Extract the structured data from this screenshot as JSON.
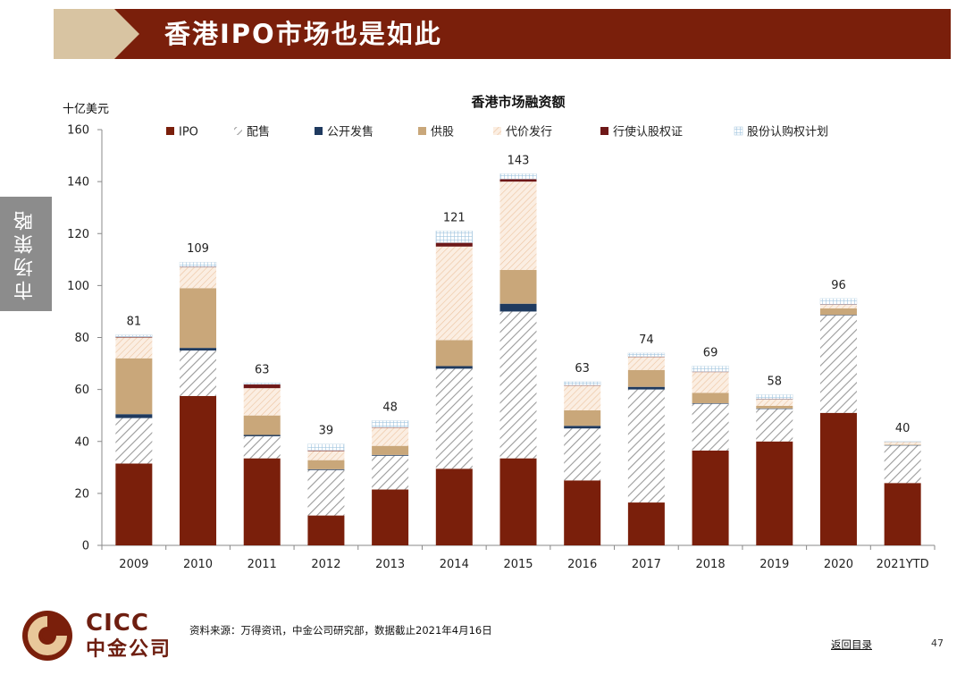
{
  "slide": {
    "title": "香港IPO市场也是如此",
    "side_tab": "市场策略",
    "source_note": "资料来源：万得资讯，中金公司研究部，数据截止2021年4月16日",
    "back_link": "返回目录",
    "page_number": "47",
    "logo_text": "CICC",
    "logo_cn": "中金公司"
  },
  "colors": {
    "banner": "#7a1f0b",
    "banner_accent": "#d8c4a2",
    "ipo": "#7a1f0b",
    "placing_hatch": "#9a9a9a",
    "public_offer": "#1f3a5f",
    "rights": "#c9a77a",
    "consideration_issue": "#f0c9a8",
    "warrants": "#6e1818",
    "share_options": "#9fc3de"
  },
  "chart_data": {
    "type": "bar",
    "stacked": true,
    "title": "香港市场融资额",
    "ylabel": "十亿美元",
    "ylim": [
      0,
      160
    ],
    "yticks": [
      0,
      20,
      40,
      60,
      80,
      100,
      120,
      140,
      160
    ],
    "categories": [
      "2009",
      "2010",
      "2011",
      "2012",
      "2013",
      "2014",
      "2015",
      "2016",
      "2017",
      "2018",
      "2019",
      "2020",
      "2021YTD"
    ],
    "series": [
      {
        "name": "IPO",
        "key": "ipo",
        "values": [
          31.5,
          57.5,
          33.5,
          11.5,
          21.5,
          29.5,
          33.5,
          25,
          16.5,
          36.5,
          40,
          51,
          24
        ]
      },
      {
        "name": "配售",
        "key": "placing",
        "values": [
          17.5,
          17.5,
          8.5,
          17.5,
          13,
          38.5,
          56.5,
          20,
          43.5,
          18,
          12.5,
          37.5,
          14.5
        ]
      },
      {
        "name": "公开发售",
        "key": "public_offer",
        "values": [
          1.5,
          1,
          0.5,
          0.3,
          0.3,
          1,
          3,
          1,
          1,
          0.2,
          0.2,
          0.2,
          0.1
        ]
      },
      {
        "name": "供股",
        "key": "rights",
        "values": [
          21.5,
          23,
          7.5,
          3.5,
          3.5,
          10,
          13,
          6,
          6.5,
          4,
          1,
          2.5,
          0.2
        ]
      },
      {
        "name": "代价发行",
        "key": "consideration_issue",
        "values": [
          8,
          8,
          10.5,
          3.5,
          7,
          36,
          34,
          9.5,
          5,
          8,
          2.5,
          1.5,
          1
        ]
      },
      {
        "name": "行使认股权证",
        "key": "warrants",
        "values": [
          0.3,
          0.2,
          1.5,
          0.3,
          0.2,
          1.5,
          1,
          0.2,
          0.2,
          0.2,
          0.1,
          0.1,
          0.1
        ]
      },
      {
        "name": "股份认购权计划",
        "key": "share_options",
        "values": [
          0.7,
          1.8,
          0.5,
          2.4,
          2.5,
          4.5,
          2,
          1.3,
          1.3,
          2.1,
          1.7,
          2.2,
          0.1
        ]
      }
    ],
    "totals": [
      "81",
      "109",
      "63",
      "39",
      "48",
      "121",
      "143",
      "63",
      "74",
      "69",
      "58",
      "96",
      "40"
    ],
    "legend_position": "top",
    "grid": false
  }
}
